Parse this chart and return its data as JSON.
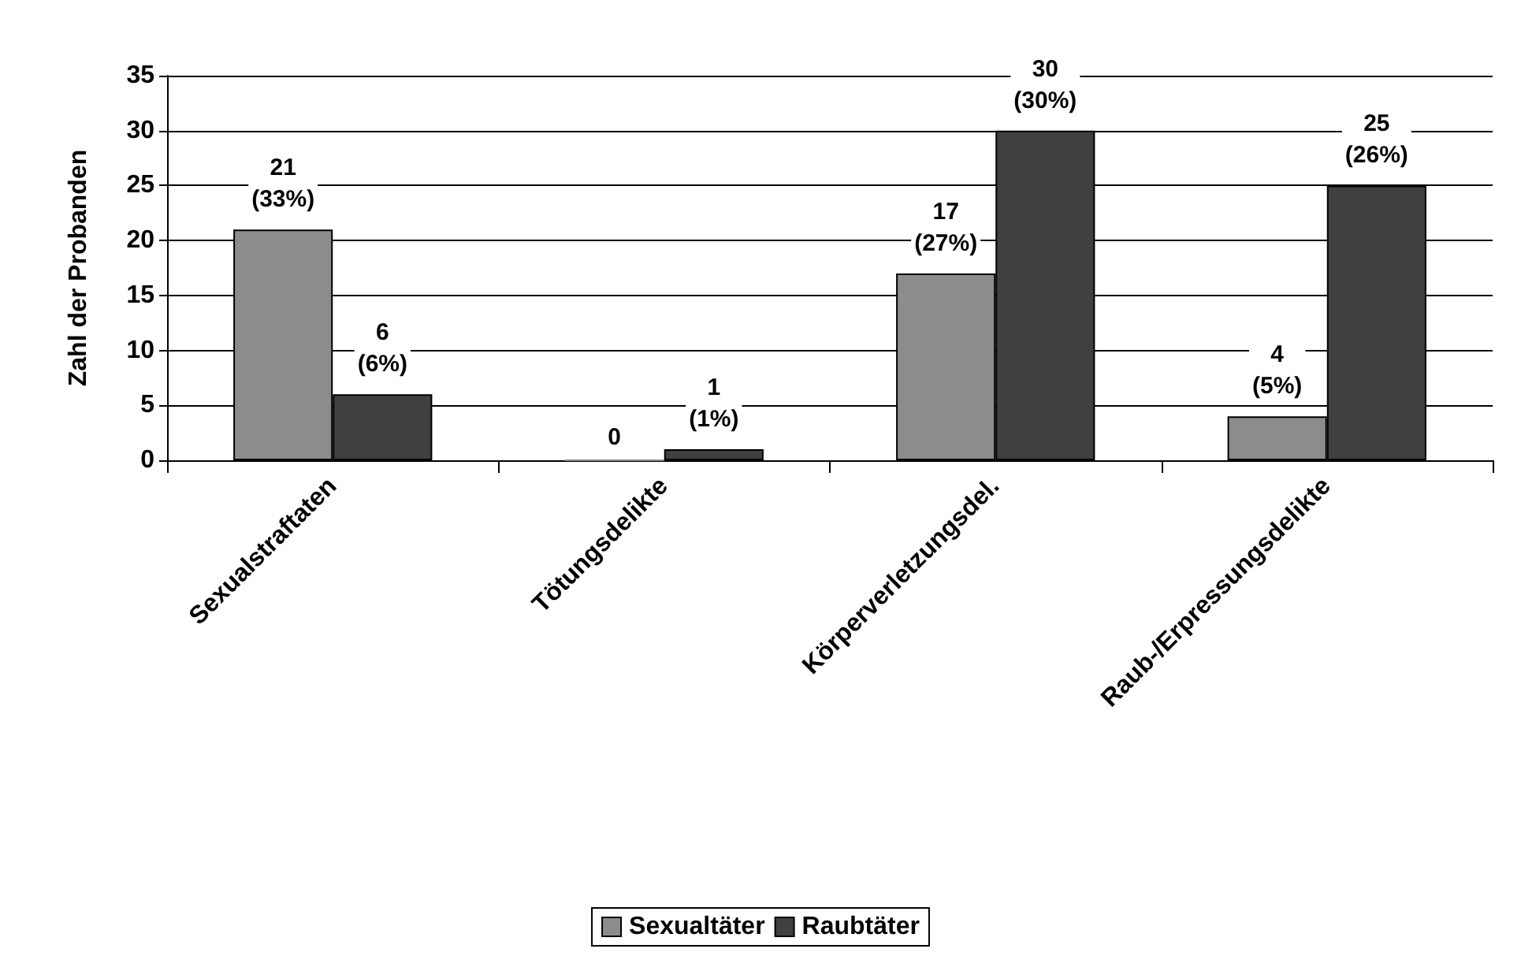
{
  "chart_data": {
    "type": "bar",
    "ylabel": "Zahl der Probanden",
    "categories": [
      "Sexualstraftaten",
      "Tötungsdelikte",
      "Körperverletzungsdel.",
      "Raub-/Erpressungsdelikte"
    ],
    "series": [
      {
        "name": "Sexualtäter",
        "color": "#8c8c8c",
        "values": [
          21,
          0,
          17,
          4
        ],
        "value_labels": [
          "21\n(33%)",
          "0",
          "17\n(27%)",
          "4\n(5%)"
        ]
      },
      {
        "name": "Raubtäter",
        "color": "#404040",
        "values": [
          6,
          1,
          30,
          25
        ],
        "value_labels": [
          "6\n(6%)",
          "1\n(1%)",
          "30\n(30%)",
          "25\n(26%)"
        ]
      }
    ],
    "ylim": [
      0,
      35
    ],
    "yticks": [
      0,
      5,
      10,
      15,
      20,
      25,
      30,
      35
    ],
    "grid": "y",
    "legend": "bottom"
  }
}
